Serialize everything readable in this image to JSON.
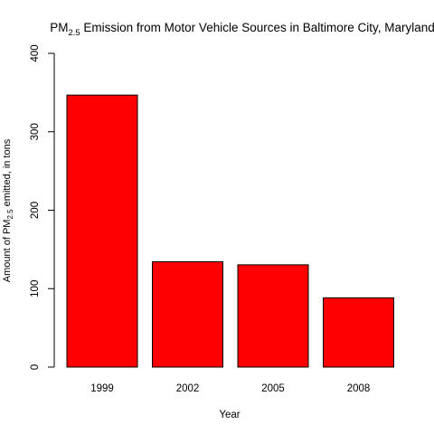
{
  "chart_data": {
    "type": "bar",
    "title": {
      "before": "PM",
      "sub": "2.5",
      "after": " Emission from Motor Vehicle Sources in Baltimore City, Maryland"
    },
    "xlabel": "Year",
    "ylabel": {
      "before": "Amount of PM",
      "sub": "2.5",
      "after": " emitted, in tons"
    },
    "categories": [
      "1999",
      "2002",
      "2005",
      "2008"
    ],
    "values": [
      346.8,
      134.3,
      130.4,
      88.3
    ],
    "ylim": [
      0,
      400
    ],
    "yticks": [
      0,
      100,
      200,
      300,
      400
    ],
    "bar_color": "#ff0000",
    "bar_border_color": "#000000",
    "grid": false,
    "legend": "none"
  }
}
